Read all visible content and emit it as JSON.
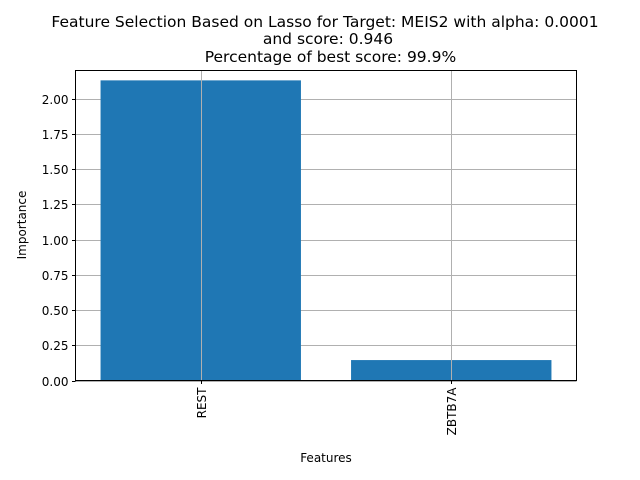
{
  "chart_data": {
    "type": "bar",
    "title": [
      "Feature Selection Based on Lasso for Target: MEIS2 with alpha: 0.0001",
      "and score: 0.946",
      " Percentage of best score: 99.9%"
    ],
    "xlabel": "Features",
    "ylabel": "Importance",
    "categories": [
      "REST",
      "ZBTB7A"
    ],
    "values": [
      2.13,
      0.145
    ],
    "ylim": [
      0,
      2.2
    ],
    "yticks": [
      "0.00",
      "0.25",
      "0.50",
      "0.75",
      "1.00",
      "1.25",
      "1.50",
      "1.75",
      "2.00"
    ],
    "grid": true,
    "bar_color": "#1f77b4",
    "grid_color": "#b0b0b0"
  }
}
